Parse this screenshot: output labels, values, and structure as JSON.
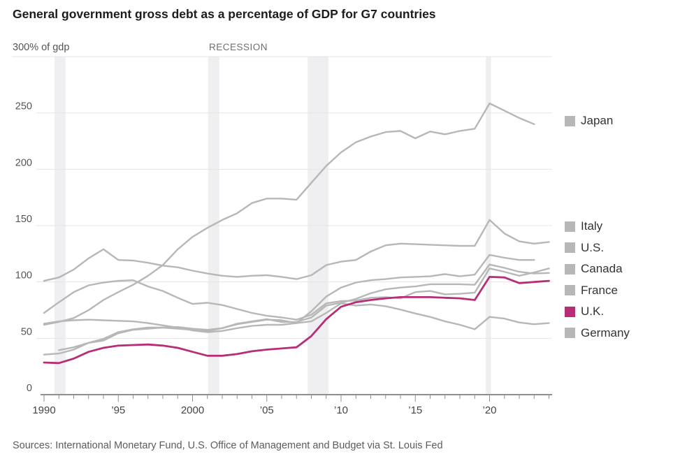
{
  "title": "General government gross debt as a percentage of GDP for G7 countries",
  "y_axis_unit_label": "300% of gdp",
  "recession_label": "RECESSION",
  "source": "Sources: International Monetary Fund, U.S. Office of Management and Budget via St. Louis Fed",
  "colors": {
    "highlight": "#b82e76",
    "muted": "#b7b7b7",
    "grid": "#e4e4e4",
    "band": "#efeff1",
    "axis": "#8f8f8f",
    "tick_label": "#444444",
    "y_label": "#555555"
  },
  "legend": {
    "items": [
      "Japan",
      "Italy",
      "U.S.",
      "Canada",
      "France",
      "U.K.",
      "Germany"
    ]
  },
  "chart_data": {
    "type": "line",
    "title": "General government gross debt as a percentage of GDP for G7 countries",
    "ylabel": "% of gdp",
    "xlabel": "",
    "x_range": [
      1990,
      2024
    ],
    "ylim": [
      0,
      300
    ],
    "grid": "horizontal",
    "legend_position": "right",
    "y_ticks": [
      0,
      50,
      100,
      150,
      200,
      250
    ],
    "y_top_label": "300% of gdp",
    "x_ticks_labeled": [
      {
        "year": 1990,
        "label": "1990"
      },
      {
        "year": 1995,
        "label": "’95"
      },
      {
        "year": 2000,
        "label": "2000"
      },
      {
        "year": 2005,
        "label": "’05"
      },
      {
        "year": 2010,
        "label": "’10"
      },
      {
        "year": 2015,
        "label": "’15"
      },
      {
        "year": 2020,
        "label": "’20"
      }
    ],
    "x_minor_tick_step": 1,
    "recession_bands": [
      [
        1990.7,
        1991.45
      ],
      [
        2001.05,
        2001.8
      ],
      [
        2007.75,
        2009.15
      ],
      [
        2019.75,
        2020.1
      ]
    ],
    "series": [
      {
        "name": "Japan",
        "highlight": false,
        "start_year": 1990,
        "end_year": 2023,
        "values": [
          62,
          64.5,
          68,
          75,
          84,
          91,
          97.5,
          105.5,
          115,
          129,
          140,
          148,
          155,
          161,
          170,
          174,
          174,
          173,
          188,
          203,
          215,
          224,
          229,
          233,
          234,
          227.5,
          233.5,
          231,
          234,
          236,
          258.5,
          252,
          245.5,
          240
        ]
      },
      {
        "name": "Italy",
        "highlight": false,
        "start_year": 1990,
        "end_year": 2024,
        "values": [
          101,
          104,
          111,
          121,
          129,
          119.5,
          119,
          117,
          114.5,
          113,
          110,
          107.5,
          105.5,
          104.5,
          105.5,
          106,
          104.5,
          102.5,
          106,
          115,
          118,
          119.5,
          127,
          132.5,
          134,
          133.5,
          133,
          132.5,
          132,
          132,
          155,
          143,
          136,
          134,
          135.5
        ]
      },
      {
        "name": "U.S.",
        "highlight": false,
        "start_year": 1990,
        "end_year": 2023,
        "values": [
          63,
          65,
          66,
          66.5,
          66,
          65.5,
          65,
          63.5,
          61.5,
          59.5,
          57,
          55.5,
          56.5,
          59,
          61,
          62,
          62,
          63.5,
          74,
          87,
          95,
          99.5,
          101.5,
          102.5,
          104,
          104.5,
          105,
          107,
          105,
          106.5,
          124,
          121.5,
          119.5,
          119.5
        ]
      },
      {
        "name": "Canada",
        "highlight": false,
        "start_year": 1990,
        "end_year": 2024,
        "values": [
          72.5,
          82,
          91,
          97,
          99.5,
          101,
          101.5,
          96,
          92,
          86,
          80.5,
          81.5,
          79.5,
          76,
          72.5,
          70,
          68.5,
          66.5,
          71,
          81,
          83,
          83.5,
          86,
          86.5,
          85.5,
          91,
          92,
          89,
          89.5,
          90.5,
          112,
          109,
          105.5,
          108.5,
          112
        ]
      },
      {
        "name": "France",
        "highlight": false,
        "start_year": 1990,
        "end_year": 2024,
        "values": [
          35.5,
          36.5,
          40,
          46,
          49.5,
          55.5,
          58,
          59.5,
          59.5,
          58.5,
          57.5,
          56.5,
          59,
          63,
          65,
          67,
          64.5,
          64.5,
          68.5,
          79,
          81.5,
          85,
          90,
          93.5,
          95,
          96,
          98,
          98,
          98,
          97.5,
          115.5,
          112.5,
          109,
          107.5,
          108
        ]
      },
      {
        "name": "U.K.",
        "highlight": true,
        "start_year": 1990,
        "end_year": 2024,
        "values": [
          28.5,
          28,
          32,
          38,
          41.5,
          43.5,
          44,
          44.5,
          43.5,
          41.5,
          38,
          34.5,
          34.5,
          36,
          38.5,
          40,
          41,
          42,
          52,
          67,
          78,
          82,
          84,
          85.5,
          86.5,
          86.5,
          86.5,
          86,
          85.5,
          84,
          104.5,
          104,
          99,
          100,
          101
        ]
      },
      {
        "name": "Germany",
        "highlight": false,
        "start_year": 1991,
        "end_year": 2024,
        "values": [
          39.5,
          42,
          46,
          48,
          54.5,
          57.5,
          58.5,
          59.5,
          60,
          58.5,
          57.5,
          59,
          62.5,
          64.5,
          66.5,
          66,
          63.5,
          65,
          72.5,
          81,
          79,
          80,
          78.5,
          75.5,
          72,
          69,
          65,
          62,
          58,
          69,
          67.5,
          64,
          62.5,
          63.5
        ]
      }
    ]
  }
}
